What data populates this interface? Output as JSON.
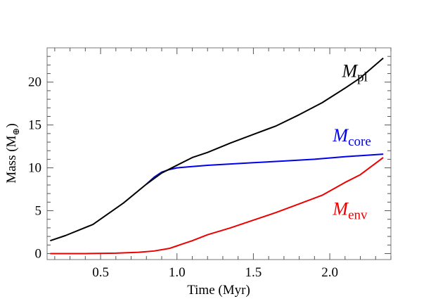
{
  "chart_data": {
    "type": "line",
    "title": "",
    "xlabel": "Time (Myr)",
    "ylabel": "Mass (M",
    "ylabel_sub": "⊕",
    "ylabel_close": ")",
    "xlim": [
      0.15,
      2.4
    ],
    "ylim": [
      -0.7,
      24
    ],
    "x_ticks": [
      0.5,
      1.0,
      1.5,
      2.0
    ],
    "x_tick_labels": [
      "0.5",
      "1.0",
      "1.5",
      "2.0"
    ],
    "y_ticks": [
      0,
      5,
      10,
      15,
      20
    ],
    "y_tick_labels": [
      "0",
      "5",
      "10",
      "15",
      "20"
    ],
    "grid": false,
    "series": [
      {
        "name": "M",
        "name_sub": "pl",
        "color": "#000000",
        "x": [
          0.17,
          0.27,
          0.45,
          0.65,
          0.8,
          0.9,
          1.0,
          1.1,
          1.2,
          1.35,
          1.5,
          1.65,
          1.8,
          1.95,
          2.1,
          2.2,
          2.35
        ],
        "y": [
          1.5,
          2.1,
          3.4,
          5.9,
          8.1,
          9.4,
          10.3,
          11.2,
          11.8,
          12.9,
          13.9,
          14.9,
          16.2,
          17.6,
          19.3,
          20.5,
          22.8
        ]
      },
      {
        "name": "M",
        "name_sub": "core",
        "color": "#0000ee",
        "x": [
          0.8,
          0.85,
          0.9,
          0.95,
          1.0,
          1.1,
          1.2,
          1.3,
          1.5,
          1.7,
          1.9,
          2.1,
          2.35
        ],
        "y": [
          8.1,
          8.9,
          9.5,
          9.8,
          10.0,
          10.15,
          10.3,
          10.4,
          10.6,
          10.8,
          11.0,
          11.3,
          11.6
        ]
      },
      {
        "name": "M",
        "name_sub": "env",
        "color": "#ee0000",
        "x": [
          0.17,
          0.4,
          0.6,
          0.75,
          0.85,
          0.95,
          1.0,
          1.1,
          1.2,
          1.35,
          1.5,
          1.65,
          1.8,
          1.95,
          2.1,
          2.2,
          2.35
        ],
        "y": [
          0.0,
          0.0,
          0.05,
          0.15,
          0.3,
          0.6,
          0.9,
          1.5,
          2.2,
          3.0,
          3.9,
          4.8,
          5.8,
          6.8,
          8.3,
          9.2,
          11.2
        ]
      }
    ]
  }
}
